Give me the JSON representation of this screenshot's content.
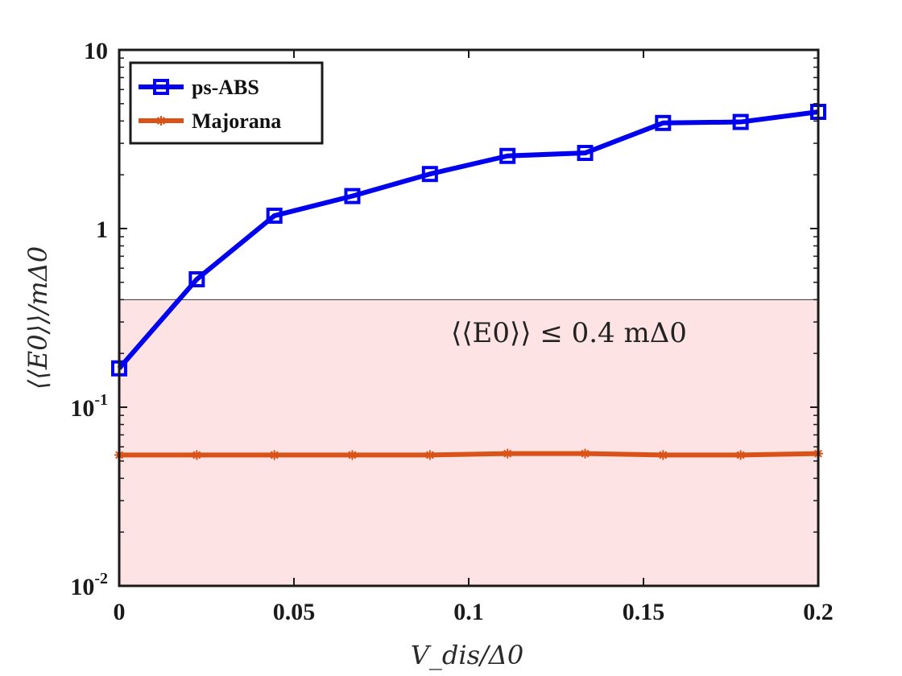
{
  "chart_data": {
    "type": "line",
    "yscale": "log",
    "xlabel": "V_dis/Δ0",
    "ylabel": "⟨⟨E0⟩⟩/mΔ0",
    "xlim": [
      0,
      0.2
    ],
    "ylim": [
      0.01,
      10
    ],
    "x_ticks": [
      0,
      0.05,
      0.1,
      0.15,
      0.2
    ],
    "x_tick_labels": [
      "0",
      "0.05",
      "0.1",
      "0.15",
      "0.2"
    ],
    "y_ticks": [
      0.01,
      0.1,
      1,
      10
    ],
    "y_tick_labels": [
      {
        "base": "10",
        "exp": "-2"
      },
      {
        "base": "10",
        "exp": "-1"
      },
      {
        "base": "1",
        "exp": ""
      },
      {
        "base": "10",
        "exp": ""
      }
    ],
    "x": [
      0,
      0.0222,
      0.0444,
      0.0667,
      0.0889,
      0.1111,
      0.1333,
      0.1556,
      0.1778,
      0.2
    ],
    "series": [
      {
        "name": "ps-ABS",
        "color": "#0000ee",
        "marker": "square",
        "values": [
          0.165,
          0.52,
          1.18,
          1.52,
          2.02,
          2.55,
          2.65,
          3.9,
          3.95,
          4.5
        ]
      },
      {
        "name": "Majorana",
        "color": "#d95319",
        "marker": "asterisk",
        "values": [
          0.054,
          0.054,
          0.054,
          0.054,
          0.054,
          0.055,
          0.055,
          0.054,
          0.054,
          0.055
        ]
      }
    ],
    "shaded_region": {
      "y_max": 0.4,
      "fill": "#fde3e3",
      "label": "⟨⟨E0⟩⟩ ≤ 0.4 mΔ0"
    },
    "legend_position": "top-left",
    "grid": false
  }
}
